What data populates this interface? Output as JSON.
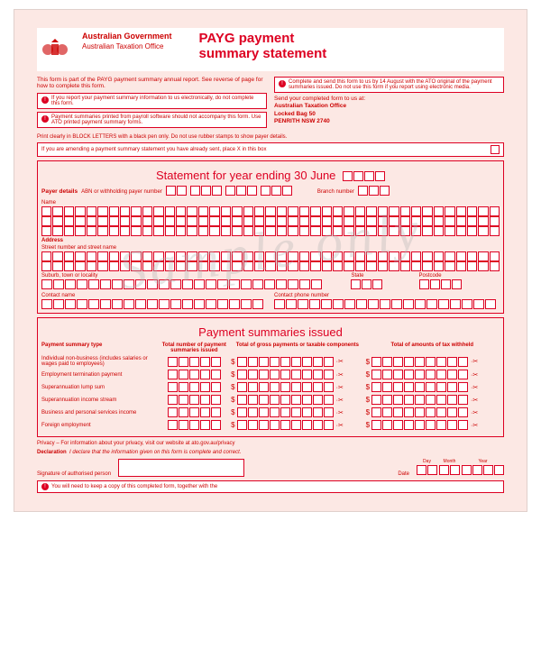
{
  "header": {
    "govt_line1": "Australian Government",
    "govt_line2": "Australian Taxation Office",
    "title_line1": "PAYG payment",
    "title_line2": "summary statement"
  },
  "intro": "This form is part of the PAYG payment summary annual report. See reverse of page for how to complete this form.",
  "notes": {
    "electronic": "If you report your payment summary information to us electronically, do not complete this form.",
    "payroll": "Payment summaries printed from payroll software should not accompany this form. Use ATO printed payment summary forms.",
    "deadline": "Complete and send this form to us by 14 August with the ATO original of the payment summaries issued. Do not use this form if you report using electronic media."
  },
  "address": {
    "intro": "Send your completed form to us at:",
    "line1": "Australian Taxation Office",
    "line2": "Locked Bag 50",
    "line3": "PENRITH NSW 2740"
  },
  "print_note": "Print clearly in BLOCK LETTERS with a black pen only. Do not use rubber stamps to show payer details.",
  "amend": "If you are amending a payment summary statement you have already sent, place X in this box",
  "section1": {
    "title": "Statement for year ending 30 June",
    "payer_details": "Payer details",
    "abn": "ABN or withholding payer number",
    "branch": "Branch number",
    "name": "Name",
    "address": "Address",
    "street": "Street number and street name",
    "suburb": "Suburb, town or locality",
    "state": "State",
    "postcode": "Postcode",
    "contact_name": "Contact name",
    "contact_phone": "Contact phone number"
  },
  "section2": {
    "title": "Payment summaries issued",
    "col1": "Payment summary type",
    "col2": "Total number of payment summaries issued",
    "col3": "Total of gross payments or taxable components",
    "col4": "Total of amounts of tax withheld",
    "rows": [
      "Individual non-business (includes salaries or wages paid to employees)",
      "Employment termination payment",
      "Superannuation lump sum",
      "Superannuation income stream",
      "Business and personal services income",
      "Foreign employment"
    ]
  },
  "privacy": "Privacy – For information about your privacy, visit our website at ato.gov.au/privacy",
  "declaration_label": "Declaration",
  "declaration": "I declare that the information given on this form is complete and correct.",
  "sig_label": "Signature of authorised person",
  "date_label": "Date",
  "day": "Day",
  "month": "Month",
  "year": "Year",
  "keep": "You will need to keep a copy of this completed form, together with the",
  "watermark": "Sample only",
  "colors": {
    "primary": "#d02",
    "bg": "#fce8e4",
    "text": "#c00"
  }
}
